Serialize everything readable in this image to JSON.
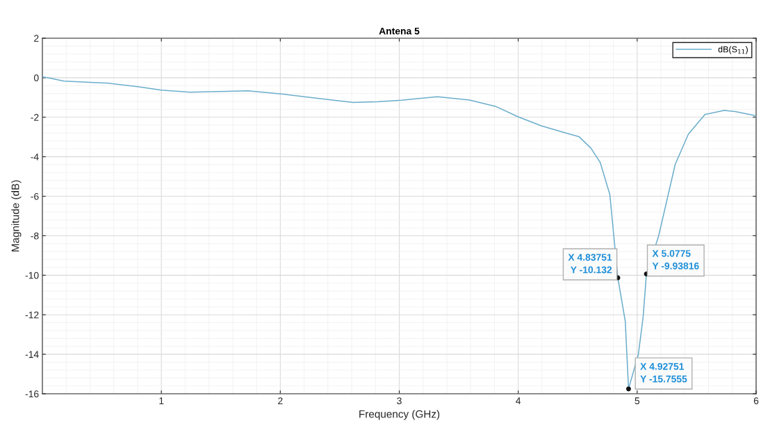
{
  "chart_data": {
    "type": "line",
    "title": "Antena 5",
    "xlabel": "Frequency (GHz)",
    "ylabel": "Magnitude (dB)",
    "xlim": [
      0,
      6
    ],
    "xticks": [
      1,
      2,
      3,
      4,
      5,
      6
    ],
    "ylim": [
      -16,
      2
    ],
    "yticks": [
      -16,
      -14,
      -12,
      -10,
      -8,
      -6,
      -4,
      -2,
      0,
      2
    ],
    "grid": true,
    "legend": "top right",
    "marker": "none",
    "line_style": "solid",
    "series": [
      {
        "name": "dB(S$_{11}$)",
        "color": "#6aaecb",
        "x": [
          0.0,
          0.05,
          0.18,
          0.55,
          0.81,
          1.0,
          1.24,
          1.73,
          2.02,
          2.31,
          2.61,
          2.82,
          3.02,
          3.32,
          3.59,
          3.81,
          4.0,
          4.2,
          4.41,
          4.51,
          4.61,
          4.69,
          4.77,
          4.83751,
          4.9,
          4.92751,
          5.01,
          5.05,
          5.0775,
          5.18,
          5.32,
          5.43,
          5.57,
          5.73,
          5.82,
          5.98,
          6.0
        ],
        "values": [
          0.04,
          0.0,
          -0.17,
          -0.28,
          -0.46,
          -0.63,
          -0.73,
          -0.66,
          -0.83,
          -1.04,
          -1.25,
          -1.22,
          -1.14,
          -0.96,
          -1.13,
          -1.45,
          -1.98,
          -2.45,
          -2.82,
          -2.98,
          -3.56,
          -4.3,
          -5.91,
          -10.132,
          -12.34,
          -15.7555,
          -14.0,
          -12.12,
          -9.93816,
          -8.02,
          -4.38,
          -2.86,
          -1.86,
          -1.66,
          -1.71,
          -1.9,
          -1.98
        ]
      }
    ],
    "annotations": [
      {
        "text": "X 4.83751\nY -10.132",
        "x": 4.83751,
        "y": -10.132
      },
      {
        "text": "X 5.0775\nY -9.93816",
        "x": 5.0775,
        "y": -9.93816
      },
      {
        "text": "X 4.92751\nY -15.7555",
        "x": 4.92751,
        "y": -15.7555
      }
    ]
  }
}
